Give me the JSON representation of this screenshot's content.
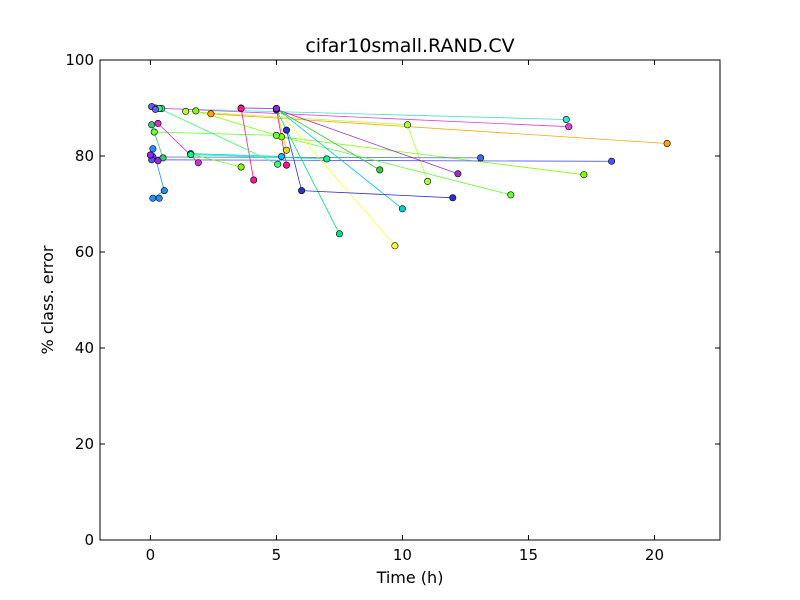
{
  "chart_data": {
    "type": "scatter",
    "title": "cifar10small.RAND.CV",
    "xlabel": "Time (h)",
    "ylabel": "% class. error",
    "xlim": [
      -2,
      22.6
    ],
    "ylim": [
      0,
      100
    ],
    "xticks": [
      0,
      5,
      10,
      15,
      20
    ],
    "yticks": [
      0,
      20,
      40,
      60,
      80,
      100
    ],
    "grid": false,
    "legend": "none",
    "series": [
      {
        "color": "#ffa500",
        "points": [
          [
            2.4,
            88.8
          ],
          [
            20.5,
            82.6
          ]
        ]
      },
      {
        "color": "#40e0d0",
        "points": [
          [
            0.45,
            89.9
          ],
          [
            16.5,
            87.6
          ]
        ]
      },
      {
        "color": "#e040e0",
        "points": [
          [
            0.2,
            90.0
          ],
          [
            16.6,
            86.1
          ]
        ]
      },
      {
        "color": "#adff2f",
        "points": [
          [
            1.4,
            89.3
          ],
          [
            10.2,
            86.5
          ],
          [
            11.0,
            74.7
          ]
        ]
      },
      {
        "color": "#7fff00",
        "points": [
          [
            1.8,
            89.4
          ],
          [
            5.2,
            84.0
          ],
          [
            17.2,
            76.1
          ]
        ]
      },
      {
        "color": "#4169e1",
        "points": [
          [
            0.1,
            79.8
          ],
          [
            13.1,
            79.6
          ]
        ]
      },
      {
        "color": "#5050ff",
        "points": [
          [
            0.05,
            79.2
          ],
          [
            18.3,
            78.9
          ]
        ]
      },
      {
        "color": "#9932cc",
        "points": [
          [
            5.0,
            89.7
          ],
          [
            12.2,
            76.3
          ]
        ]
      },
      {
        "color": "#66ff33",
        "points": [
          [
            0.15,
            85.0
          ],
          [
            5.0,
            84.3
          ],
          [
            14.3,
            71.9
          ]
        ]
      },
      {
        "color": "#32cd32",
        "points": [
          [
            5.0,
            89.8
          ],
          [
            9.1,
            77.1
          ]
        ]
      },
      {
        "color": "#00ced1",
        "points": [
          [
            5.0,
            89.9
          ],
          [
            10.0,
            69.0
          ]
        ]
      },
      {
        "color": "#ffff33",
        "points": [
          [
            5.0,
            89.8
          ],
          [
            9.7,
            61.3
          ]
        ]
      },
      {
        "color": "#00e080",
        "points": [
          [
            5.0,
            89.6
          ],
          [
            7.5,
            63.8
          ]
        ]
      },
      {
        "color": "#3030d0",
        "points": [
          [
            5.4,
            85.4
          ],
          [
            6.0,
            72.8
          ],
          [
            12.0,
            71.3
          ]
        ]
      },
      {
        "color": "#e0e000",
        "points": [
          [
            5.0,
            89.9
          ],
          [
            5.4,
            81.2
          ]
        ]
      },
      {
        "color": "#ff1493",
        "points": [
          [
            5.0,
            89.8
          ],
          [
            5.4,
            78.1
          ]
        ]
      },
      {
        "color": "#8a2be2",
        "points": [
          [
            3.6,
            90.0
          ],
          [
            5.0,
            89.9
          ]
        ]
      },
      {
        "color": "#ff1493",
        "points": [
          [
            3.6,
            89.9
          ],
          [
            4.1,
            75.0
          ]
        ]
      },
      {
        "color": "#7cfc00",
        "points": [
          [
            1.6,
            80.4
          ],
          [
            3.6,
            77.7
          ]
        ]
      },
      {
        "color": "#00bfff",
        "points": [
          [
            1.6,
            80.5
          ],
          [
            5.2,
            79.9
          ]
        ]
      },
      {
        "color": "#cc33cc",
        "points": [
          [
            0.3,
            86.8
          ],
          [
            1.9,
            78.6
          ]
        ]
      },
      {
        "color": "#00ff7f",
        "points": [
          [
            1.6,
            80.3
          ],
          [
            7.0,
            79.4
          ]
        ]
      },
      {
        "color": "#1e90ff",
        "points": [
          [
            0.1,
            81.5
          ],
          [
            0.55,
            72.8
          ],
          [
            0.1,
            71.2
          ],
          [
            0.35,
            71.2
          ]
        ]
      },
      {
        "color": "#33ff66",
        "points": [
          [
            0.35,
            89.9
          ],
          [
            5.05,
            78.3
          ]
        ]
      },
      {
        "color": "#6060ff",
        "points": [
          [
            0.05,
            90.3
          ],
          [
            0.2,
            89.7
          ]
        ]
      },
      {
        "color": "#2ecc71",
        "points": [
          [
            0.05,
            86.5
          ],
          [
            0.5,
            79.6
          ]
        ]
      },
      {
        "color": "#a020f0",
        "points": [
          [
            0.0,
            80.2
          ],
          [
            0.3,
            79.0
          ]
        ]
      }
    ]
  }
}
